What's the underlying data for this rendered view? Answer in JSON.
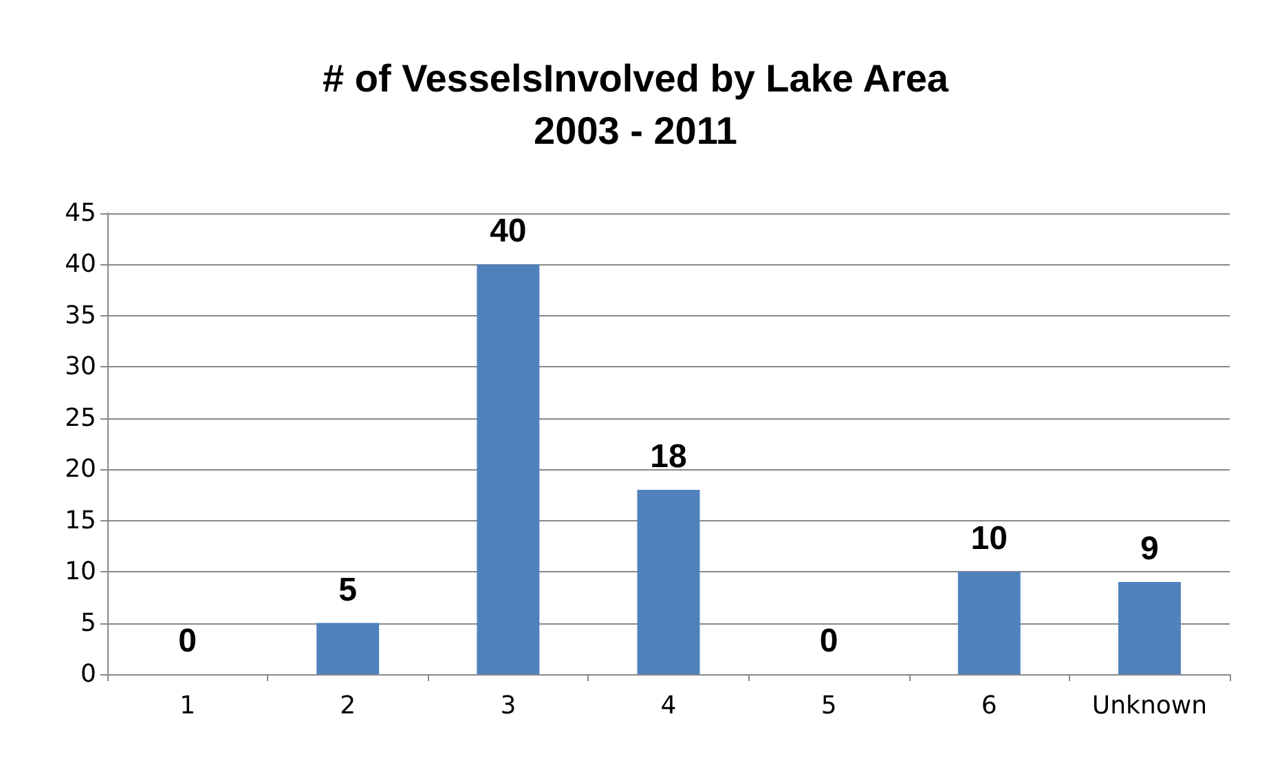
{
  "chart_data": {
    "type": "bar",
    "title": "# of VesselsInvolved by Lake Area",
    "subtitle": "2003 - 2011",
    "categories": [
      "1",
      "2",
      "3",
      "4",
      "5",
      "6",
      "Unknown"
    ],
    "values": [
      0,
      5,
      40,
      18,
      0,
      10,
      9
    ],
    "color": "#4f81bd",
    "ylim": [
      0,
      45
    ],
    "yticks": [
      0,
      5,
      10,
      15,
      20,
      25,
      30,
      35,
      40,
      45
    ],
    "grid": "y",
    "data_labels": true
  }
}
